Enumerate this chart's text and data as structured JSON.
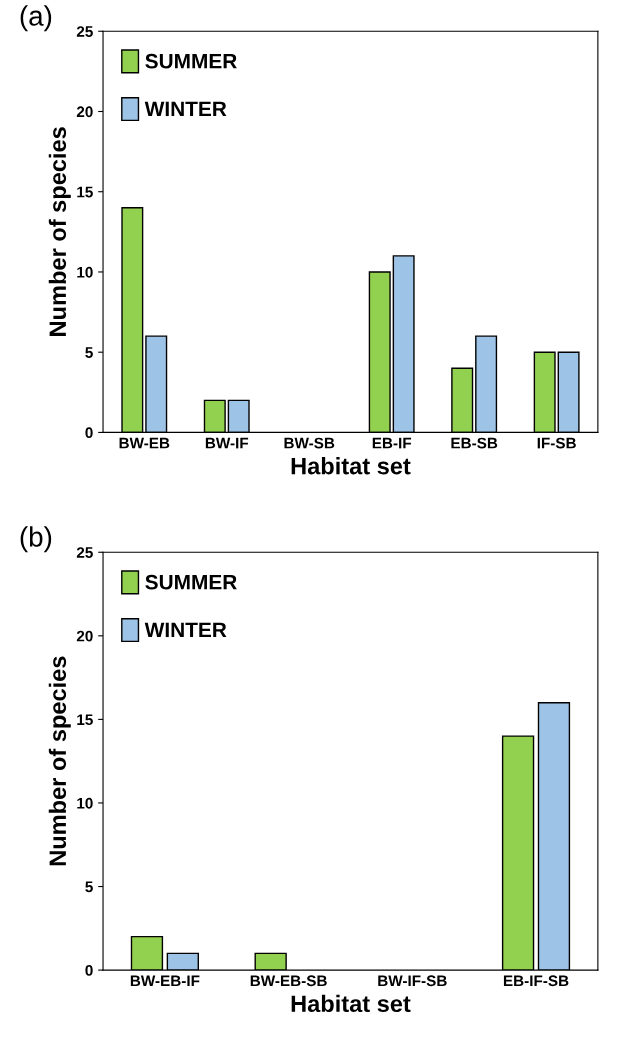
{
  "chart_data": [
    {
      "type": "bar",
      "title": "(a)",
      "xlabel": "Habitat set",
      "ylabel": "Number of species",
      "categories": [
        "BW-EB",
        "BW-IF",
        "BW-SB",
        "EB-IF",
        "EB-SB",
        "IF-SB"
      ],
      "series": [
        {
          "name": "SUMMER",
          "color": "#92d050",
          "values": [
            14,
            2,
            0,
            10,
            4,
            5
          ]
        },
        {
          "name": "WINTER",
          "color": "#9dc3e6",
          "values": [
            6,
            2,
            0,
            11,
            6,
            5
          ]
        }
      ],
      "ylim": [
        0,
        25
      ],
      "yticks": [
        0,
        5,
        10,
        15,
        20,
        25
      ],
      "grid": false,
      "legend": "top left"
    },
    {
      "type": "bar",
      "title": "(b)",
      "xlabel": "Habitat set",
      "ylabel": "Number of species",
      "categories": [
        "BW-EB-IF",
        "BW-EB-SB",
        "BW-IF-SB",
        "EB-IF-SB"
      ],
      "series": [
        {
          "name": "SUMMER",
          "color": "#92d050",
          "values": [
            2,
            1,
            0,
            14
          ]
        },
        {
          "name": "WINTER",
          "color": "#9dc3e6",
          "values": [
            1,
            0,
            0,
            16
          ]
        }
      ],
      "ylim": [
        0,
        25
      ],
      "yticks": [
        0,
        5,
        10,
        15,
        20,
        25
      ],
      "grid": false,
      "legend": "top left"
    }
  ]
}
